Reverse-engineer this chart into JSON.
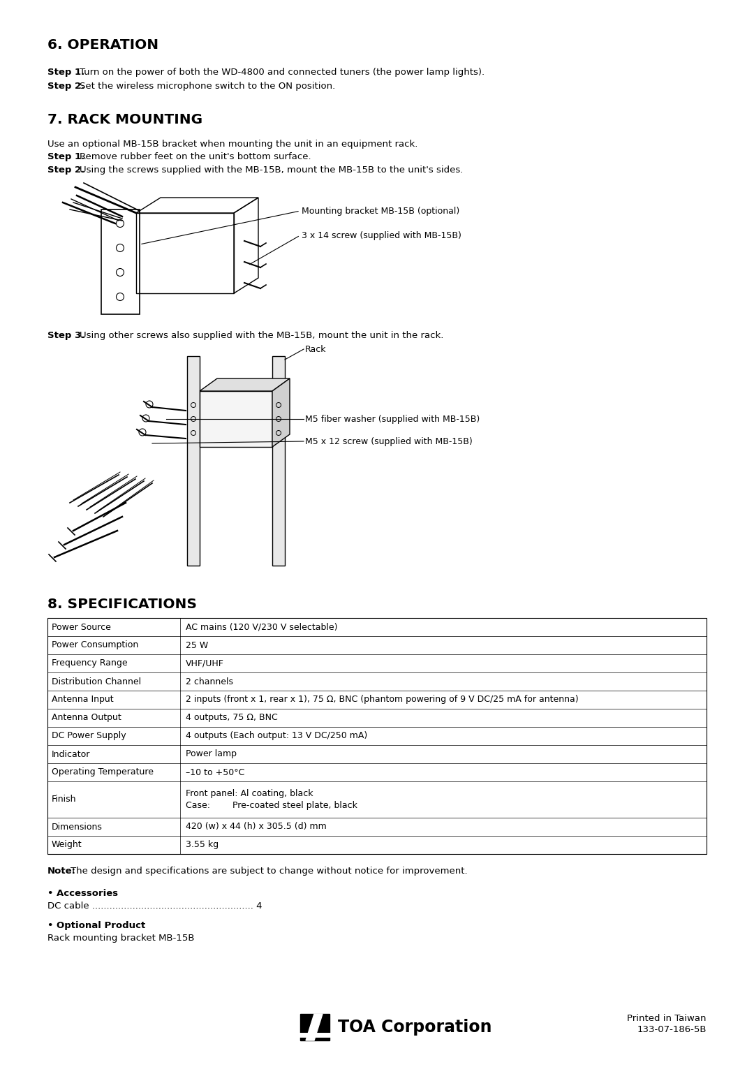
{
  "bg_color": "#ffffff",
  "section6_title": "6. OPERATION",
  "section6_step1_bold": "Step 1.",
  "section6_step1_text": "Turn on the power of both the WD-4800 and connected tuners (the power lamp lights).",
  "section6_step2_bold": "Step 2.",
  "section6_step2_text": "Set the wireless microphone switch to the ON position.",
  "section7_title": "7. RACK MOUNTING",
  "section7_intro": "Use an optional MB-15B bracket when mounting the unit in an equipment rack.",
  "section7_step1_bold": "Step 1.",
  "section7_step1_text": "Remove rubber feet on the unit's bottom surface.",
  "section7_step2_bold": "Step 2.",
  "section7_step2_text": "Using the screws supplied with the MB-15B, mount the MB-15B to the unit's sides.",
  "diagram1_label1": "Mounting bracket MB-15B (optional)",
  "diagram1_label2": "3 x 14 screw (supplied with MB-15B)",
  "section7_step3_bold": "Step 3.",
  "section7_step3_text": "Using other screws also supplied with the MB-15B, mount the unit in the rack.",
  "diagram2_label1": "Rack",
  "diagram2_label2": "M5 fiber washer (supplied with MB-15B)",
  "diagram2_label3": "M5 x 12 screw (supplied with MB-15B)",
  "section8_title": "8. SPECIFICATIONS",
  "spec_rows": [
    [
      "Power Source",
      "AC mains (120 V/230 V selectable)"
    ],
    [
      "Power Consumption",
      "25 W"
    ],
    [
      "Frequency Range",
      "VHF/UHF"
    ],
    [
      "Distribution Channel",
      "2 channels"
    ],
    [
      "Antenna Input",
      "2 inputs (front x 1, rear x 1), 75 Ω, BNC (phantom powering of 9 V DC/25 mA for antenna)"
    ],
    [
      "Antenna Output",
      "4 outputs, 75 Ω, BNC"
    ],
    [
      "DC Power Supply",
      "4 outputs (Each output: 13 V DC/250 mA)"
    ],
    [
      "Indicator",
      "Power lamp"
    ],
    [
      "Operating Temperature",
      "–10 to +50°C"
    ],
    [
      "Finish",
      "Front panel: Al coating, black\nCase:        Pre-coated steel plate, black"
    ],
    [
      "Dimensions",
      "420 (w) x 44 (h) x 305.5 (d) mm"
    ],
    [
      "Weight",
      "3.55 kg"
    ]
  ],
  "note_bold": "Note:",
  "note_text": "The design and specifications are subject to change without notice for improvement.",
  "accessories_header": "• Accessories",
  "accessories_line": "DC cable ........................................................ 4",
  "optional_header": "• Optional Product",
  "optional_line": "Rack mounting bracket MB-15B",
  "footer_logo_text": "TOA Corporation",
  "footer_right1": "Printed in Taiwan",
  "footer_right2": "133-07-186-5B"
}
